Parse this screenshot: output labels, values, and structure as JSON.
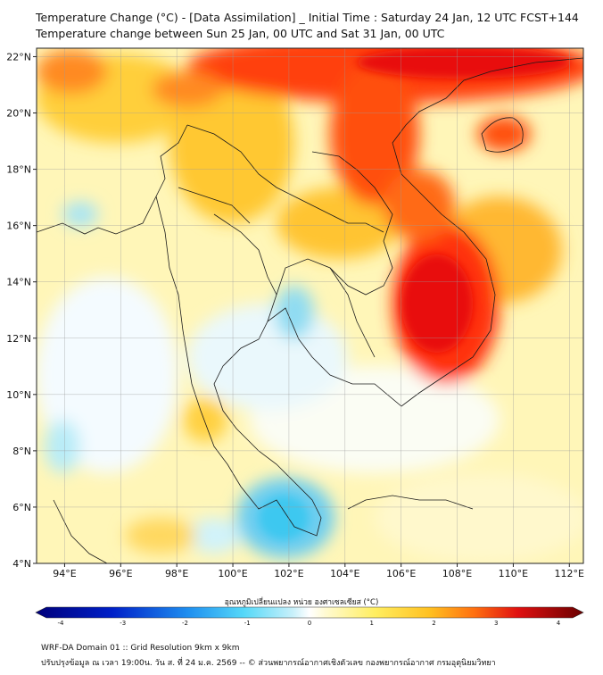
{
  "header": {
    "title_line1": "Temperature Change (°C) - [Data Assimilation] _ Initial Time : Saturday 24 Jan, 12 UTC FCST+144",
    "title_line2": "Temperature change between Sun 25 Jan, 00 UTC and Sat 31 Jan, 00 UTC"
  },
  "map": {
    "lat_labels": [
      "22°N",
      "20°N",
      "18°N",
      "16°N",
      "14°N",
      "12°N",
      "10°N",
      "8°N",
      "6°N",
      "4°N"
    ],
    "lon_labels": [
      "94°E",
      "96°E",
      "98°E",
      "100°E",
      "102°E",
      "104°E",
      "106°E",
      "108°E",
      "110°E",
      "112°E"
    ],
    "lat_range": [
      4,
      22.3
    ],
    "lon_range": [
      93,
      112.5
    ],
    "grid": true
  },
  "colorbar": {
    "title": "อุณหภูมิเปลี่ยนแปลง หน่วย องศาเซลเซียส (°C)",
    "ticks": [
      "-4",
      "-3",
      "-2",
      "-1",
      "0",
      "1",
      "2",
      "3",
      "4"
    ],
    "range": [
      -4,
      4
    ],
    "colors": {
      "cold": "#00007a",
      "cool": "#3cc8f0",
      "neutral": "#ffffff",
      "warm": "#ffe050",
      "hot": "#e01010",
      "extreme": "#6a0000"
    }
  },
  "footer": {
    "line1": "WRF-DA Domain 01 :: Grid Resolution 9km x 9km",
    "line2": "ปรับปรุงข้อมูล ณ เวลา 19:00น. วัน ส. ที่ 24 ม.ค. 2569 -- © ส่วนพยากรณ์อากาศเชิงตัวเลข กองพยากรณ์อากาศ กรมอุตุนิยมวิทยา"
  }
}
